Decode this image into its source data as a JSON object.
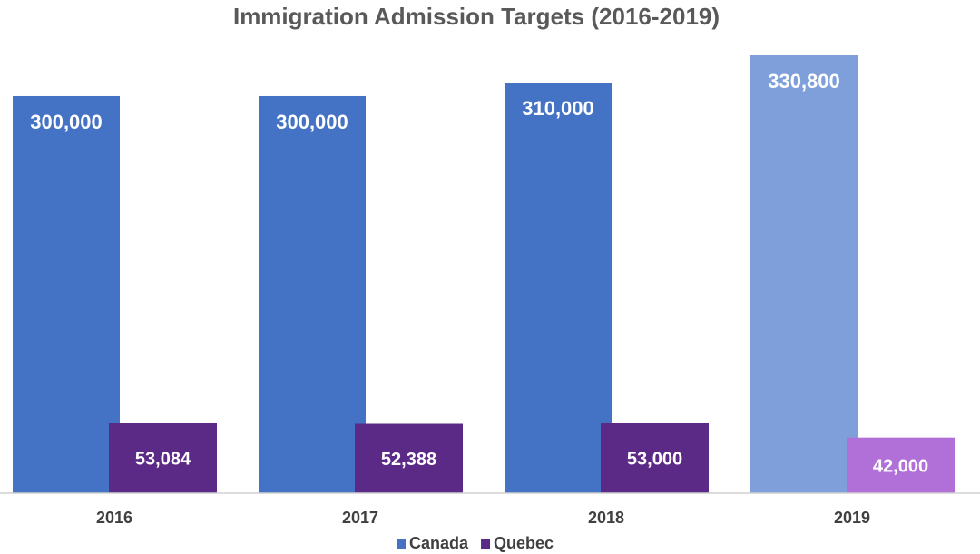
{
  "chart_data": {
    "type": "bar",
    "title": "Immigration Admission Targets (2016-2019)",
    "categories": [
      "2016",
      "2017",
      "2018",
      "2019"
    ],
    "series": [
      {
        "name": "Canada",
        "color": "#4472c4",
        "colors": [
          "#4472c4",
          "#4472c4",
          "#4472c4",
          "#7f9fda"
        ],
        "values": [
          300000,
          300000,
          310000,
          330800
        ],
        "value_labels": [
          "300,000",
          "300,000",
          "310,000",
          "330,800"
        ]
      },
      {
        "name": "Quebec",
        "color": "#5b2a86",
        "colors": [
          "#5b2a86",
          "#5b2a86",
          "#5b2a86",
          "#b070d8"
        ],
        "values": [
          53084,
          52388,
          53000,
          42000
        ],
        "value_labels": [
          "53,084",
          "52,388",
          "53,000",
          "42,000"
        ]
      }
    ],
    "legend": "bottom"
  }
}
